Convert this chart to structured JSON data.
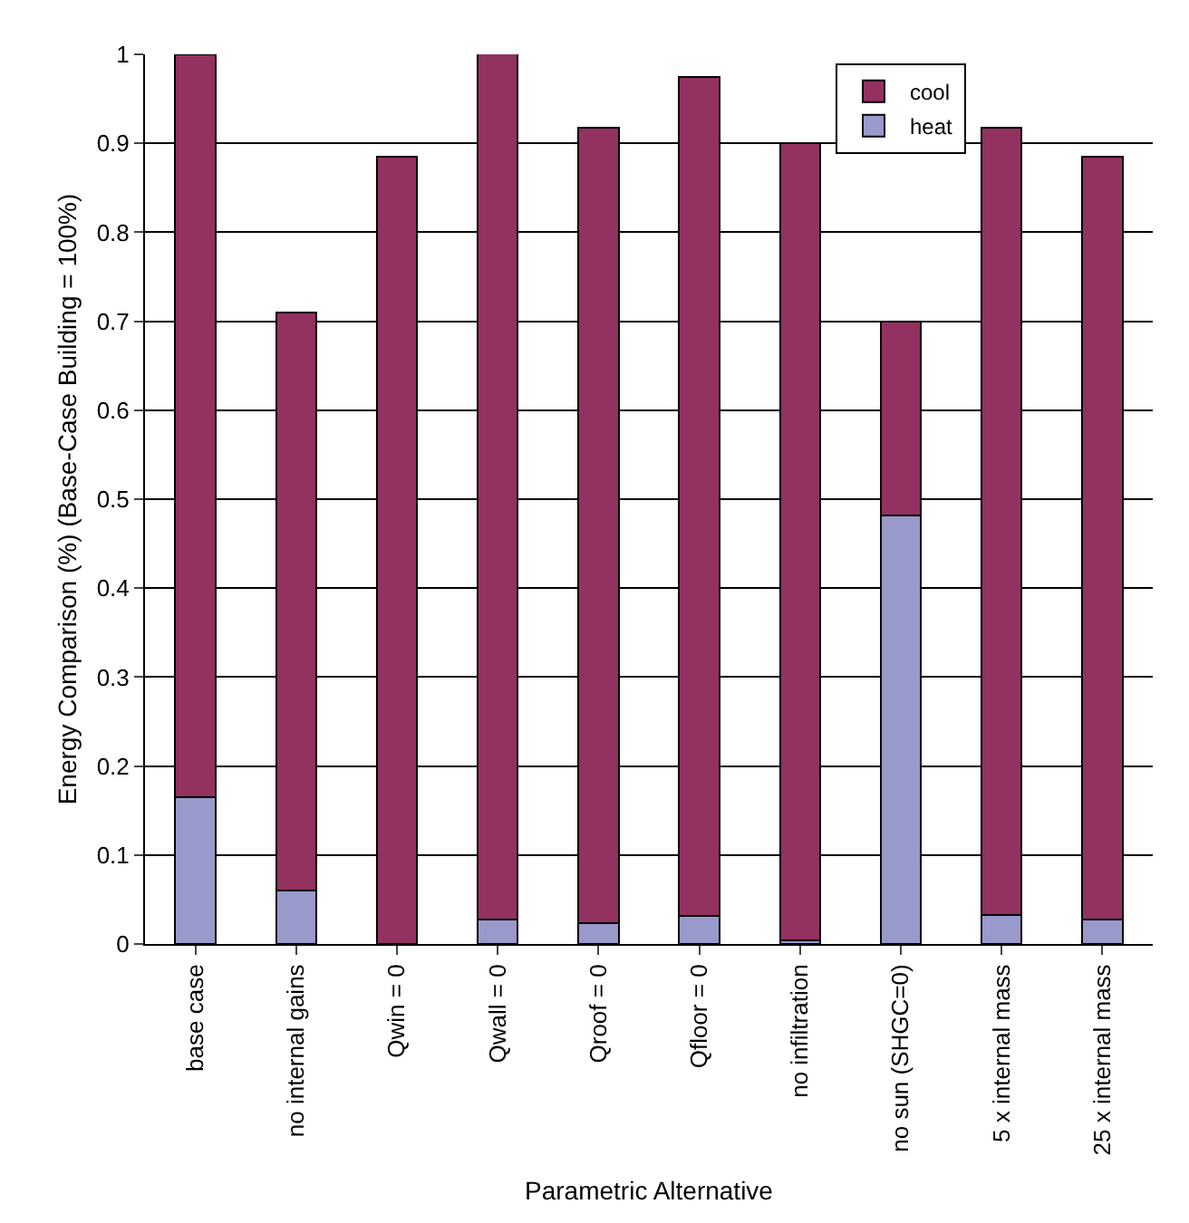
{
  "chart_data": {
    "type": "bar",
    "stacked": true,
    "xlabel": "Parametric Alternative",
    "ylabel": "Energy Comparison (%) (Base-Case Building = 100%)",
    "categories": [
      "base case",
      "no internal gains",
      "Qwin = 0",
      "Qwall = 0",
      "Qroof = 0",
      "Qfloor = 0",
      "no infiltration",
      "no sun (SHGC=0)",
      "5 x internal mass",
      "25 x internal mass"
    ],
    "series": [
      {
        "name": "heat",
        "color": "#9999cc",
        "values": [
          0.165,
          0.06,
          0,
          0.027,
          0.023,
          0.032,
          0.004,
          0.482,
          0.033,
          0.028
        ]
      },
      {
        "name": "cool",
        "color": "#933160",
        "values": [
          0.835,
          0.65,
          0.885,
          0.976,
          0.895,
          0.943,
          0.896,
          0.218,
          0.885,
          0.857
        ]
      }
    ],
    "ylim": [
      0,
      1
    ],
    "yticks": [
      0,
      0.1,
      0.2,
      0.3,
      0.4,
      0.5,
      0.6,
      0.7,
      0.8,
      0.9,
      1
    ],
    "grid": "y",
    "legend": "top right"
  }
}
